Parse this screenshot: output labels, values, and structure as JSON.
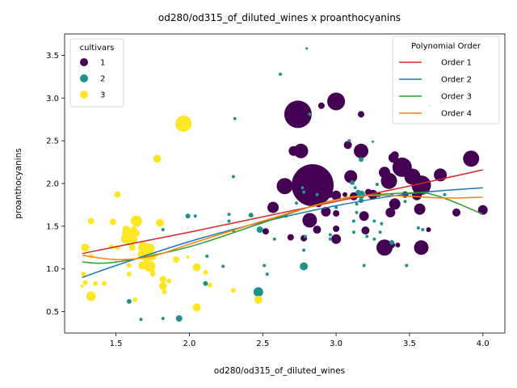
{
  "chart_data": {
    "type": "scatter",
    "title": "od280/od315_of_diluted_wines x proanthocyanins",
    "xlabel": "od280/od315_of_diluted_wines",
    "ylabel": "proanthocyanins",
    "xlim": [
      1.15,
      4.15
    ],
    "ylim": [
      0.25,
      3.75
    ],
    "xticks": [
      1.5,
      2.0,
      2.5,
      3.0,
      3.5,
      4.0
    ],
    "xtick_labels": [
      "1.5",
      "2.0",
      "2.5",
      "3.0",
      "3.5",
      "4.0"
    ],
    "yticks": [
      0.5,
      1.0,
      1.5,
      2.0,
      2.5,
      3.0,
      3.5
    ],
    "ytick_labels": [
      "0.5",
      "1.0",
      "1.5",
      "2.0",
      "2.5",
      "3.0",
      "3.5"
    ],
    "grid": false,
    "cultivar_legend": {
      "title": "cultivars",
      "placement": "upper-left",
      "entries": [
        {
          "label": "1",
          "color": "#440154"
        },
        {
          "label": "2",
          "color": "#21918c"
        },
        {
          "label": "3",
          "color": "#fde725"
        }
      ]
    },
    "fit_legend": {
      "title": "Polynomial Order",
      "placement": "upper-right",
      "entries": [
        {
          "label": "Order 1",
          "color": "#d62728"
        },
        {
          "label": "Order 2",
          "color": "#1f77b4"
        },
        {
          "label": "Order 3",
          "color": "#2ca02c"
        },
        {
          "label": "Order 4",
          "color": "#ff7f0e"
        }
      ]
    },
    "fit_curves": [
      {
        "label": "Order 1",
        "color": "#d62728",
        "points": [
          [
            1.27,
            1.18
          ],
          [
            1.5,
            1.26
          ],
          [
            2.0,
            1.43
          ],
          [
            2.5,
            1.61
          ],
          [
            3.0,
            1.79
          ],
          [
            3.5,
            1.97
          ],
          [
            4.0,
            2.16
          ]
        ]
      },
      {
        "label": "Order 2",
        "color": "#1f77b4",
        "points": [
          [
            1.27,
            0.9
          ],
          [
            1.5,
            1.04
          ],
          [
            2.0,
            1.32
          ],
          [
            2.5,
            1.55
          ],
          [
            3.0,
            1.74
          ],
          [
            3.5,
            1.88
          ],
          [
            4.0,
            1.95
          ]
        ]
      },
      {
        "label": "Order 3",
        "color": "#2ca02c",
        "points": [
          [
            1.27,
            1.08
          ],
          [
            1.5,
            1.08
          ],
          [
            2.0,
            1.26
          ],
          [
            2.5,
            1.54
          ],
          [
            3.0,
            1.81
          ],
          [
            3.5,
            1.89
          ],
          [
            3.7,
            1.85
          ],
          [
            4.0,
            1.64
          ]
        ]
      },
      {
        "label": "Order 4",
        "color": "#ff7f0e",
        "points": [
          [
            1.27,
            1.16
          ],
          [
            1.5,
            1.11
          ],
          [
            1.75,
            1.15
          ],
          [
            2.0,
            1.29
          ],
          [
            2.5,
            1.56
          ],
          [
            3.0,
            1.81
          ],
          [
            3.25,
            1.86
          ],
          [
            3.5,
            1.85
          ],
          [
            3.75,
            1.83
          ],
          [
            4.0,
            1.84
          ]
        ]
      }
    ],
    "points": [
      {
        "x": 2.84,
        "y": 1.98,
        "c": 1,
        "s": 26
      },
      {
        "x": 2.74,
        "y": 2.81,
        "c": 1,
        "s": 17
      },
      {
        "x": 3.0,
        "y": 2.96,
        "c": 1,
        "s": 11
      },
      {
        "x": 3.45,
        "y": 2.19,
        "c": 1,
        "s": 12
      },
      {
        "x": 3.58,
        "y": 1.98,
        "c": 1,
        "s": 12
      },
      {
        "x": 2.65,
        "y": 1.97,
        "c": 1,
        "s": 10
      },
      {
        "x": 3.92,
        "y": 2.29,
        "c": 1,
        "s": 10
      },
      {
        "x": 3.52,
        "y": 2.08,
        "c": 1,
        "s": 10
      },
      {
        "x": 3.71,
        "y": 2.1,
        "c": 1,
        "s": 8
      },
      {
        "x": 3.36,
        "y": 2.03,
        "c": 1,
        "s": 10
      },
      {
        "x": 3.1,
        "y": 2.08,
        "c": 1,
        "s": 8
      },
      {
        "x": 2.76,
        "y": 2.38,
        "c": 1,
        "s": 9
      },
      {
        "x": 3.17,
        "y": 2.38,
        "c": 1,
        "s": 9
      },
      {
        "x": 2.82,
        "y": 1.57,
        "c": 1,
        "s": 9
      },
      {
        "x": 3.33,
        "y": 1.25,
        "c": 1,
        "s": 10
      },
      {
        "x": 3.58,
        "y": 1.25,
        "c": 1,
        "s": 9
      },
      {
        "x": 3.39,
        "y": 2.3,
        "c": 1,
        "s": 6
      },
      {
        "x": 3.33,
        "y": 2.13,
        "c": 1,
        "s": 7
      },
      {
        "x": 3.4,
        "y": 2.33,
        "c": 1,
        "s": 5
      },
      {
        "x": 3.4,
        "y": 1.76,
        "c": 1,
        "s": 7
      },
      {
        "x": 3.57,
        "y": 1.7,
        "c": 1,
        "s": 7
      },
      {
        "x": 3.25,
        "y": 1.87,
        "c": 1,
        "s": 6
      },
      {
        "x": 3.55,
        "y": 1.86,
        "c": 1,
        "s": 6
      },
      {
        "x": 2.71,
        "y": 2.38,
        "c": 1,
        "s": 6
      },
      {
        "x": 3.0,
        "y": 1.35,
        "c": 1,
        "s": 6
      },
      {
        "x": 2.57,
        "y": 1.72,
        "c": 1,
        "s": 7
      },
      {
        "x": 2.87,
        "y": 1.46,
        "c": 1,
        "s": 5
      },
      {
        "x": 3.19,
        "y": 1.62,
        "c": 1,
        "s": 6
      },
      {
        "x": 3.82,
        "y": 1.66,
        "c": 1,
        "s": 5
      },
      {
        "x": 4.0,
        "y": 1.69,
        "c": 1,
        "s": 6
      },
      {
        "x": 3.37,
        "y": 1.66,
        "c": 1,
        "s": 6
      },
      {
        "x": 3.08,
        "y": 2.45,
        "c": 1,
        "s": 5
      },
      {
        "x": 2.93,
        "y": 1.67,
        "c": 1,
        "s": 6
      },
      {
        "x": 3.0,
        "y": 1.65,
        "c": 1,
        "s": 4
      },
      {
        "x": 3.2,
        "y": 1.45,
        "c": 1,
        "s": 5
      },
      {
        "x": 3.0,
        "y": 1.47,
        "c": 1,
        "s": 4
      },
      {
        "x": 3.12,
        "y": 1.85,
        "c": 1,
        "s": 5
      },
      {
        "x": 3.0,
        "y": 1.86,
        "c": 1,
        "s": 6
      },
      {
        "x": 3.22,
        "y": 1.9,
        "c": 1,
        "s": 4
      },
      {
        "x": 2.9,
        "y": 2.91,
        "c": 1,
        "s": 4
      },
      {
        "x": 3.17,
        "y": 2.81,
        "c": 1,
        "s": 4
      },
      {
        "x": 2.78,
        "y": 1.36,
        "c": 1,
        "s": 4
      },
      {
        "x": 2.69,
        "y": 1.37,
        "c": 1,
        "s": 4
      },
      {
        "x": 2.52,
        "y": 1.44,
        "c": 1,
        "s": 4
      },
      {
        "x": 3.38,
        "y": 1.28,
        "c": 1,
        "s": 4
      },
      {
        "x": 3.42,
        "y": 1.28,
        "c": 1,
        "s": 3
      },
      {
        "x": 3.63,
        "y": 1.46,
        "c": 1,
        "s": 3
      },
      {
        "x": 3.47,
        "y": 1.87,
        "c": 1,
        "s": 4
      },
      {
        "x": 3.29,
        "y": 1.87,
        "c": 1,
        "s": 3
      },
      {
        "x": 2.85,
        "y": 1.87,
        "c": 1,
        "s": 5
      },
      {
        "x": 2.96,
        "y": 1.87,
        "c": 1,
        "s": 4
      },
      {
        "x": 2.88,
        "y": 1.76,
        "c": 1,
        "s": 4
      },
      {
        "x": 3.06,
        "y": 1.87,
        "c": 1,
        "s": 3
      },
      {
        "x": 2.62,
        "y": 3.28,
        "c": 2,
        "s": 2
      },
      {
        "x": 2.8,
        "y": 3.58,
        "c": 2,
        "s": 1.5
      },
      {
        "x": 2.31,
        "y": 2.76,
        "c": 2,
        "s": 2
      },
      {
        "x": 2.82,
        "y": 2.81,
        "c": 2,
        "s": 2
      },
      {
        "x": 3.09,
        "y": 2.5,
        "c": 2,
        "s": 2
      },
      {
        "x": 3.25,
        "y": 2.49,
        "c": 2,
        "s": 1.5
      },
      {
        "x": 3.64,
        "y": 2.91,
        "c": 2,
        "s": 1.5
      },
      {
        "x": 3.17,
        "y": 2.28,
        "c": 2,
        "s": 3
      },
      {
        "x": 2.3,
        "y": 2.08,
        "c": 2,
        "s": 2
      },
      {
        "x": 3.11,
        "y": 2.01,
        "c": 2,
        "s": 3
      },
      {
        "x": 3.28,
        "y": 1.99,
        "c": 2,
        "s": 2
      },
      {
        "x": 2.77,
        "y": 1.95,
        "c": 2,
        "s": 2
      },
      {
        "x": 3.13,
        "y": 1.95,
        "c": 2,
        "s": 2
      },
      {
        "x": 2.78,
        "y": 1.9,
        "c": 2,
        "s": 2
      },
      {
        "x": 3.15,
        "y": 1.9,
        "c": 2,
        "s": 3
      },
      {
        "x": 3.17,
        "y": 1.87,
        "c": 2,
        "s": 5
      },
      {
        "x": 3.38,
        "y": 1.87,
        "c": 2,
        "s": 2
      },
      {
        "x": 2.87,
        "y": 1.87,
        "c": 2,
        "s": 2
      },
      {
        "x": 3.17,
        "y": 1.8,
        "c": 2,
        "s": 3
      },
      {
        "x": 3.47,
        "y": 1.79,
        "c": 2,
        "s": 2
      },
      {
        "x": 2.73,
        "y": 1.77,
        "c": 2,
        "s": 2
      },
      {
        "x": 3.14,
        "y": 1.76,
        "c": 2,
        "s": 2
      },
      {
        "x": 3.0,
        "y": 1.72,
        "c": 2,
        "s": 2
      },
      {
        "x": 3.14,
        "y": 1.66,
        "c": 2,
        "s": 2
      },
      {
        "x": 2.04,
        "y": 1.62,
        "c": 2,
        "s": 2
      },
      {
        "x": 1.99,
        "y": 1.62,
        "c": 2,
        "s": 3
      },
      {
        "x": 2.42,
        "y": 1.63,
        "c": 2,
        "s": 3
      },
      {
        "x": 2.27,
        "y": 1.64,
        "c": 2,
        "s": 2
      },
      {
        "x": 2.27,
        "y": 1.56,
        "c": 2,
        "s": 2
      },
      {
        "x": 3.26,
        "y": 1.56,
        "c": 2,
        "s": 2
      },
      {
        "x": 3.31,
        "y": 1.53,
        "c": 2,
        "s": 2
      },
      {
        "x": 3.12,
        "y": 1.56,
        "c": 2,
        "s": 2
      },
      {
        "x": 3.56,
        "y": 1.48,
        "c": 2,
        "s": 2
      },
      {
        "x": 2.48,
        "y": 1.46,
        "c": 2,
        "s": 4
      },
      {
        "x": 2.3,
        "y": 1.45,
        "c": 2,
        "s": 2
      },
      {
        "x": 3.21,
        "y": 1.38,
        "c": 2,
        "s": 2
      },
      {
        "x": 2.96,
        "y": 1.4,
        "c": 2,
        "s": 2
      },
      {
        "x": 2.79,
        "y": 1.38,
        "c": 2,
        "s": 2
      },
      {
        "x": 3.26,
        "y": 1.35,
        "c": 2,
        "s": 2
      },
      {
        "x": 2.96,
        "y": 1.35,
        "c": 2,
        "s": 2
      },
      {
        "x": 3.38,
        "y": 1.31,
        "c": 2,
        "s": 3
      },
      {
        "x": 2.78,
        "y": 1.22,
        "c": 2,
        "s": 2
      },
      {
        "x": 2.12,
        "y": 1.15,
        "c": 2,
        "s": 2
      },
      {
        "x": 2.23,
        "y": 1.03,
        "c": 2,
        "s": 2
      },
      {
        "x": 2.51,
        "y": 1.04,
        "c": 2,
        "s": 2
      },
      {
        "x": 3.19,
        "y": 1.04,
        "c": 2,
        "s": 2
      },
      {
        "x": 3.48,
        "y": 1.04,
        "c": 2,
        "s": 2
      },
      {
        "x": 2.78,
        "y": 1.03,
        "c": 2,
        "s": 5
      },
      {
        "x": 2.53,
        "y": 0.94,
        "c": 2,
        "s": 2
      },
      {
        "x": 2.11,
        "y": 0.83,
        "c": 2,
        "s": 3
      },
      {
        "x": 2.47,
        "y": 0.73,
        "c": 2,
        "s": 6
      },
      {
        "x": 1.59,
        "y": 0.62,
        "c": 2,
        "s": 3
      },
      {
        "x": 1.82,
        "y": 0.42,
        "c": 2,
        "s": 2
      },
      {
        "x": 1.67,
        "y": 0.41,
        "c": 2,
        "s": 2
      },
      {
        "x": 1.93,
        "y": 0.42,
        "c": 2,
        "s": 4
      },
      {
        "x": 1.82,
        "y": 1.46,
        "c": 2,
        "s": 2
      },
      {
        "x": 3.59,
        "y": 1.46,
        "c": 2,
        "s": 2
      },
      {
        "x": 3.74,
        "y": 1.87,
        "c": 2,
        "s": 2
      },
      {
        "x": 3.3,
        "y": 1.43,
        "c": 2,
        "s": 2
      },
      {
        "x": 2.66,
        "y": 1.62,
        "c": 2,
        "s": 2
      },
      {
        "x": 3.12,
        "y": 1.43,
        "c": 2,
        "s": 2
      },
      {
        "x": 2.58,
        "y": 1.35,
        "c": 2,
        "s": 2
      },
      {
        "x": 1.96,
        "y": 2.7,
        "c": 3,
        "s": 10
      },
      {
        "x": 1.78,
        "y": 2.29,
        "c": 3,
        "s": 5
      },
      {
        "x": 1.51,
        "y": 1.87,
        "c": 3,
        "s": 4
      },
      {
        "x": 1.33,
        "y": 1.56,
        "c": 3,
        "s": 4
      },
      {
        "x": 1.48,
        "y": 1.55,
        "c": 3,
        "s": 4
      },
      {
        "x": 1.64,
        "y": 1.56,
        "c": 3,
        "s": 7
      },
      {
        "x": 1.8,
        "y": 1.54,
        "c": 3,
        "s": 5
      },
      {
        "x": 1.57,
        "y": 1.46,
        "c": 3,
        "s": 5
      },
      {
        "x": 1.62,
        "y": 1.46,
        "c": 3,
        "s": 4
      },
      {
        "x": 1.58,
        "y": 1.41,
        "c": 3,
        "s": 7
      },
      {
        "x": 1.6,
        "y": 1.35,
        "c": 3,
        "s": 8
      },
      {
        "x": 1.56,
        "y": 1.35,
        "c": 3,
        "s": 5
      },
      {
        "x": 1.64,
        "y": 1.42,
        "c": 3,
        "s": 4
      },
      {
        "x": 1.29,
        "y": 1.25,
        "c": 3,
        "s": 5
      },
      {
        "x": 1.47,
        "y": 1.26,
        "c": 3,
        "s": 3
      },
      {
        "x": 1.51,
        "y": 1.25,
        "c": 3,
        "s": 3
      },
      {
        "x": 1.61,
        "y": 1.25,
        "c": 3,
        "s": 4
      },
      {
        "x": 1.69,
        "y": 1.25,
        "c": 3,
        "s": 7
      },
      {
        "x": 1.73,
        "y": 1.24,
        "c": 3,
        "s": 6
      },
      {
        "x": 1.68,
        "y": 1.17,
        "c": 3,
        "s": 6
      },
      {
        "x": 1.72,
        "y": 1.15,
        "c": 3,
        "s": 5
      },
      {
        "x": 1.75,
        "y": 1.15,
        "c": 3,
        "s": 5
      },
      {
        "x": 1.33,
        "y": 1.15,
        "c": 3,
        "s": 3
      },
      {
        "x": 1.91,
        "y": 1.11,
        "c": 3,
        "s": 4
      },
      {
        "x": 1.99,
        "y": 1.14,
        "c": 3,
        "s": 2
      },
      {
        "x": 2.05,
        "y": 1.02,
        "c": 3,
        "s": 5
      },
      {
        "x": 1.73,
        "y": 1.03,
        "c": 3,
        "s": 7
      },
      {
        "x": 1.68,
        "y": 1.04,
        "c": 3,
        "s": 5
      },
      {
        "x": 1.59,
        "y": 0.94,
        "c": 3,
        "s": 3
      },
      {
        "x": 1.75,
        "y": 0.96,
        "c": 3,
        "s": 3
      },
      {
        "x": 1.75,
        "y": 0.94,
        "c": 3,
        "s": 3
      },
      {
        "x": 1.28,
        "y": 0.94,
        "c": 3,
        "s": 3
      },
      {
        "x": 2.11,
        "y": 0.96,
        "c": 3,
        "s": 3
      },
      {
        "x": 1.82,
        "y": 0.88,
        "c": 3,
        "s": 4
      },
      {
        "x": 1.86,
        "y": 0.86,
        "c": 3,
        "s": 3
      },
      {
        "x": 1.82,
        "y": 0.8,
        "c": 3,
        "s": 5
      },
      {
        "x": 1.36,
        "y": 0.83,
        "c": 3,
        "s": 3
      },
      {
        "x": 1.42,
        "y": 0.83,
        "c": 3,
        "s": 3
      },
      {
        "x": 1.29,
        "y": 0.84,
        "c": 3,
        "s": 3
      },
      {
        "x": 1.27,
        "y": 0.8,
        "c": 3,
        "s": 2
      },
      {
        "x": 2.14,
        "y": 0.81,
        "c": 3,
        "s": 3
      },
      {
        "x": 1.83,
        "y": 0.73,
        "c": 3,
        "s": 3
      },
      {
        "x": 2.3,
        "y": 0.75,
        "c": 3,
        "s": 3
      },
      {
        "x": 1.33,
        "y": 0.68,
        "c": 3,
        "s": 6
      },
      {
        "x": 1.63,
        "y": 0.64,
        "c": 3,
        "s": 3
      },
      {
        "x": 2.47,
        "y": 0.64,
        "c": 3,
        "s": 5
      },
      {
        "x": 2.05,
        "y": 0.55,
        "c": 3,
        "s": 5
      },
      {
        "x": 1.59,
        "y": 1.04,
        "c": 3,
        "s": 3
      },
      {
        "x": 1.71,
        "y": 1.1,
        "c": 3,
        "s": 4
      }
    ]
  }
}
